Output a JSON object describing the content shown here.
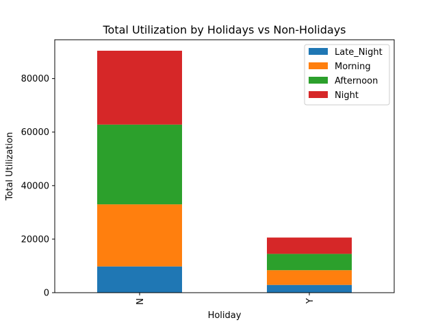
{
  "chart_data": {
    "type": "bar",
    "stacked": true,
    "title": "Total Utilization by Holidays vs Non-Holidays",
    "xlabel": "Holiday",
    "ylabel": "Total Utilization",
    "categories": [
      "N",
      "Y"
    ],
    "x_tick_rotation": 90,
    "ylim": [
      0,
      94500
    ],
    "yticks": [
      0,
      20000,
      40000,
      60000,
      80000
    ],
    "ytick_labels": [
      "0",
      "20000",
      "40000",
      "60000",
      "80000"
    ],
    "grid": false,
    "legend": {
      "position": "top-right"
    },
    "series": [
      {
        "name": "Late_Night",
        "color": "#1f77b4",
        "values": [
          9800,
          2900
        ]
      },
      {
        "name": "Morning",
        "color": "#ff7f0e",
        "values": [
          23200,
          5500
        ]
      },
      {
        "name": "Afternoon",
        "color": "#2ca02c",
        "values": [
          29800,
          6100
        ]
      },
      {
        "name": "Night",
        "color": "#d62728",
        "values": [
          27600,
          6100
        ]
      }
    ]
  }
}
